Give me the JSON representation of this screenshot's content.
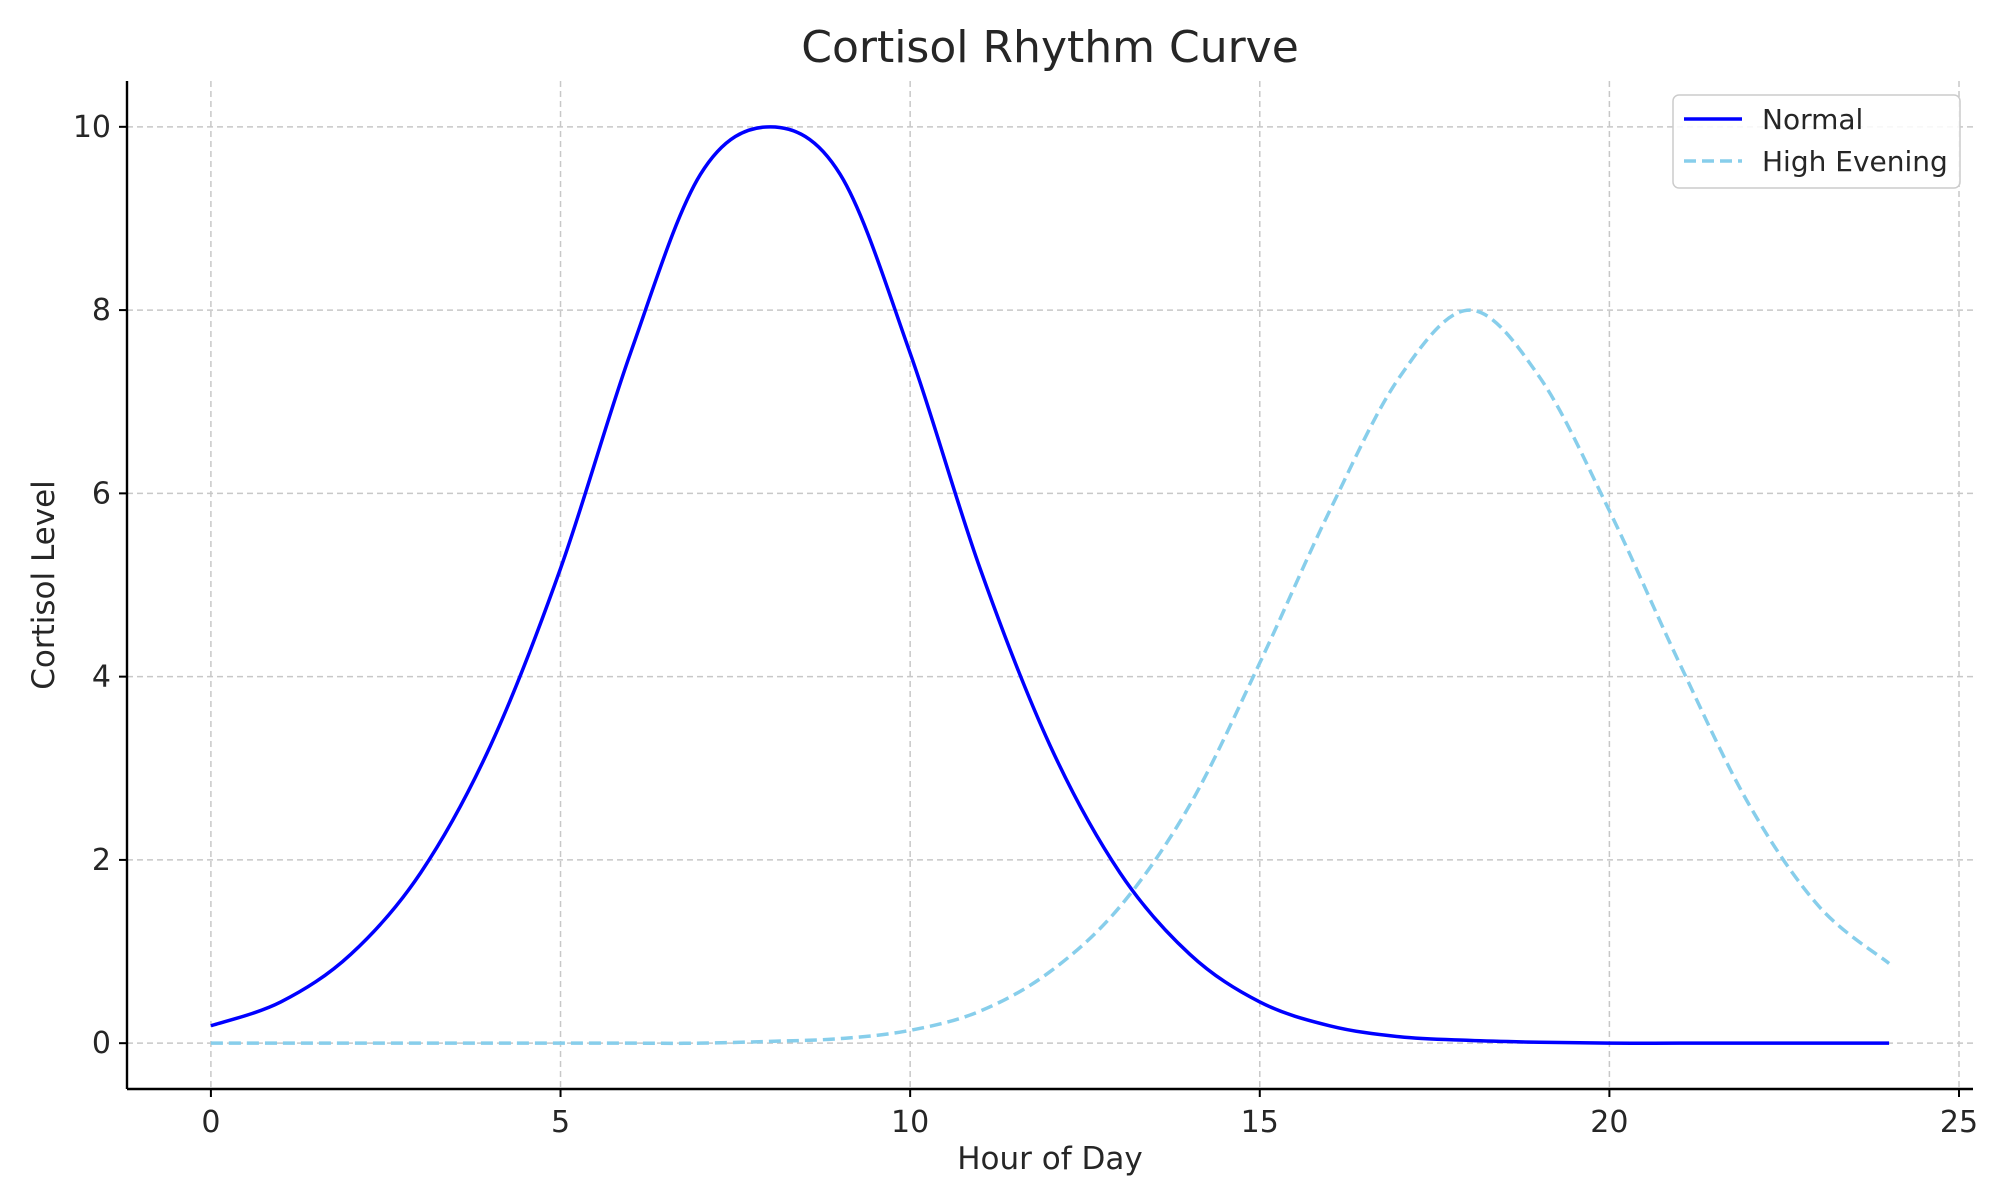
{
  "chart_data": {
    "type": "line",
    "title": "Cortisol Rhythm Curve",
    "xlabel": "Hour of Day",
    "ylabel": "Cortisol Level",
    "xlim": [
      -1.2,
      25.2
    ],
    "ylim": [
      -0.5,
      10.5
    ],
    "xticks": [
      0,
      5,
      10,
      15,
      20,
      25
    ],
    "yticks": [
      0,
      2,
      4,
      6,
      8,
      10
    ],
    "grid": true,
    "legend_position": "top-right",
    "x": [
      0,
      1,
      2,
      3,
      4,
      5,
      6,
      7,
      8,
      9,
      10,
      11,
      12,
      13,
      14,
      15,
      16,
      17,
      18,
      19,
      20,
      21,
      22,
      23,
      24
    ],
    "series": [
      {
        "name": "Normal",
        "color": "#0000ff",
        "style": "solid",
        "values": [
          0.19,
          0.45,
          0.97,
          1.86,
          3.25,
          5.18,
          7.53,
          9.48,
          10.0,
          9.48,
          7.53,
          5.18,
          3.25,
          1.86,
          0.97,
          0.45,
          0.19,
          0.07,
          0.03,
          0.01,
          0.0,
          0.0,
          0.0,
          0.0,
          0.0
        ]
      },
      {
        "name": "High Evening",
        "color": "#87ceeb",
        "style": "dashed",
        "values": [
          0.0,
          0.0,
          0.0,
          0.0,
          0.0,
          0.0,
          0.0,
          0.0,
          0.02,
          0.05,
          0.14,
          0.35,
          0.78,
          1.49,
          2.6,
          4.15,
          5.81,
          7.27,
          8.0,
          7.27,
          5.81,
          4.15,
          2.6,
          1.49,
          0.87
        ]
      }
    ]
  }
}
